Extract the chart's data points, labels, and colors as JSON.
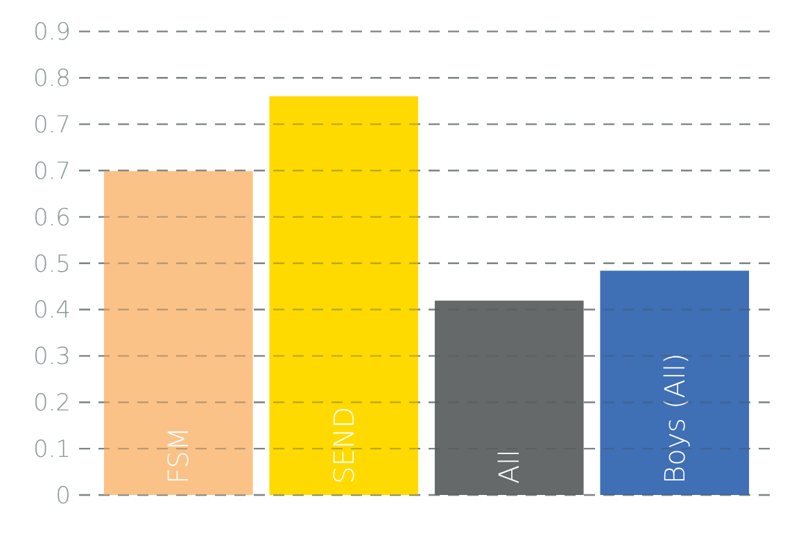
{
  "chart_data": {
    "type": "bar",
    "categories": [
      "FSM",
      "SEND",
      "All",
      "Boys (All)"
    ],
    "values": [
      0.65,
      0.8,
      0.39,
      0.45
    ],
    "colors": [
      "#fbc287",
      "#ffda00",
      "#65696a",
      "#3f6fb5"
    ],
    "ylim": [
      0,
      0.93
    ],
    "yticks": [
      0,
      {
        "value": 0.093,
        "label": "0.1"
      },
      {
        "value": 0.186,
        "label": "0.2"
      },
      {
        "value": 0.279,
        "label": "0.3"
      },
      {
        "value": 0.372,
        "label": "0.4"
      },
      {
        "value": 0.465,
        "label": "0.5"
      },
      {
        "value": 0.558,
        "label": "0.6"
      },
      {
        "value": 0.651,
        "label": "0.7"
      },
      {
        "value": 0.744,
        "label": "0.7"
      },
      {
        "value": 0.837,
        "label": "0.8"
      },
      {
        "value": 0.93,
        "label": "0.9"
      }
    ],
    "grid": "y"
  }
}
